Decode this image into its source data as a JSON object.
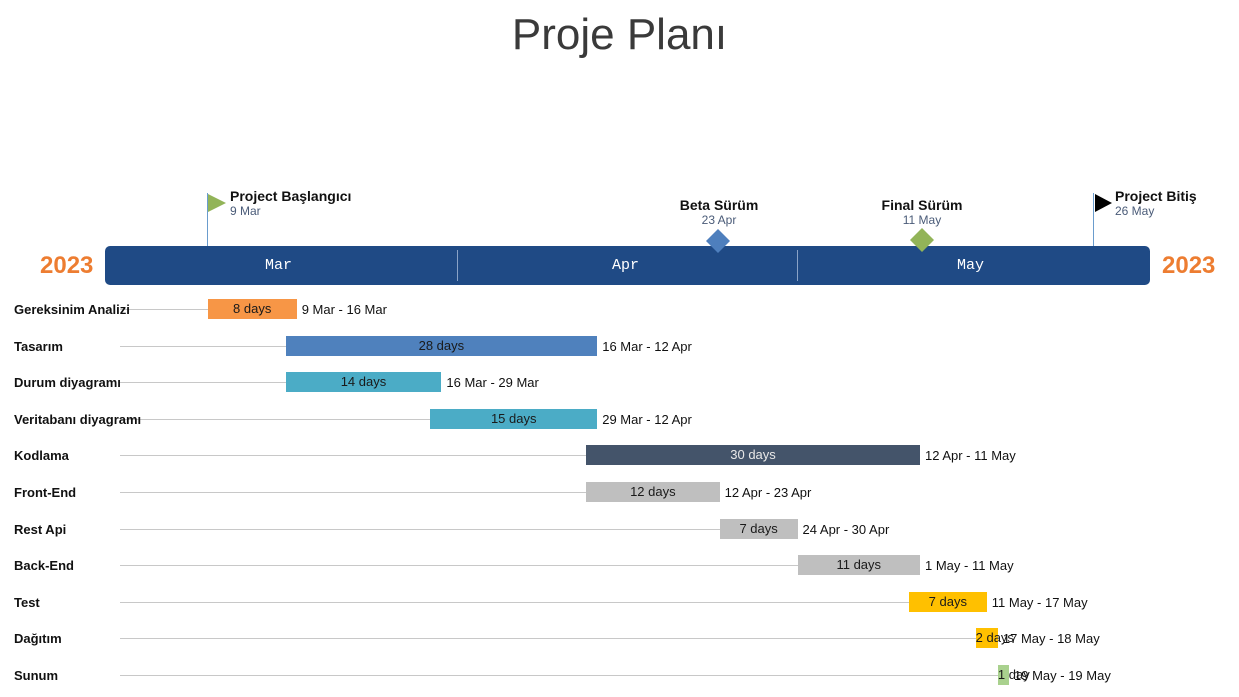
{
  "title": "Proje Planı",
  "year_left": "2023",
  "year_right": "2023",
  "months": [
    "Mar",
    "Apr",
    "May"
  ],
  "milestones": [
    {
      "title": "Project Başlangıcı",
      "date": "9 Mar",
      "shape": "flag",
      "color": "#92b458",
      "day": 8
    },
    {
      "title": "Beta Sürüm",
      "date": "23 Apr",
      "shape": "diamond",
      "color": "#4e7fbd",
      "day": 53
    },
    {
      "title": "Final Sürüm",
      "date": "11 May",
      "shape": "diamond",
      "color": "#92b458",
      "day": 71
    },
    {
      "title": "Project Bitiş",
      "date": "26 May",
      "shape": "flag",
      "color": "#000000",
      "day": 86
    }
  ],
  "chart_data": {
    "type": "gantt",
    "title": "Proje Planı",
    "x_axis": {
      "months": [
        "Mar",
        "Apr",
        "May"
      ],
      "year": "2023"
    },
    "tasks": [
      {
        "name": "Gereksinim Analizi",
        "duration": "8 days",
        "range": "9 Mar - 16 Mar",
        "start_day": 9,
        "end_day": 17,
        "color": "#f79646"
      },
      {
        "name": "Tasarım",
        "duration": "28 days",
        "range": "16 Mar - 12 Apr",
        "start_day": 16,
        "end_day": 44,
        "color": "#4f81bd"
      },
      {
        "name": "Durum diyagramı",
        "duration": "14 days",
        "range": "16 Mar - 29 Mar",
        "start_day": 16,
        "end_day": 30,
        "color": "#4bacc6"
      },
      {
        "name": "Veritabanı diyagramı",
        "duration": "15 days",
        "range": "29 Mar - 12 Apr",
        "start_day": 29,
        "end_day": 44,
        "color": "#4bacc6"
      },
      {
        "name": "Kodlama",
        "duration": "30 days",
        "range": "12 Apr - 11 May",
        "start_day": 43,
        "end_day": 73,
        "color": "#44546a"
      },
      {
        "name": "Front-End",
        "duration": "12 days",
        "range": "12 Apr - 23 Apr",
        "start_day": 43,
        "end_day": 55,
        "color": "#bfbfbf"
      },
      {
        "name": "Rest Api",
        "duration": "7 days",
        "range": "24 Apr - 30 Apr",
        "start_day": 55,
        "end_day": 62,
        "color": "#bfbfbf"
      },
      {
        "name": "Back-End",
        "duration": "11 days",
        "range": "1 May - 11 May",
        "start_day": 62,
        "end_day": 73,
        "color": "#bfbfbf"
      },
      {
        "name": "Test",
        "duration": "7 days",
        "range": "11 May - 17 May",
        "start_day": 72,
        "end_day": 79,
        "color": "#ffc000"
      },
      {
        "name": "Dağıtım",
        "duration": "2 days",
        "range": "17 May - 18 May",
        "start_day": 78,
        "end_day": 80,
        "color": "#ffc000"
      },
      {
        "name": "Sunum",
        "duration": "1 day",
        "range": "19 May - 19 May",
        "start_day": 80,
        "end_day": 81,
        "color": "#a9d18e"
      }
    ]
  }
}
